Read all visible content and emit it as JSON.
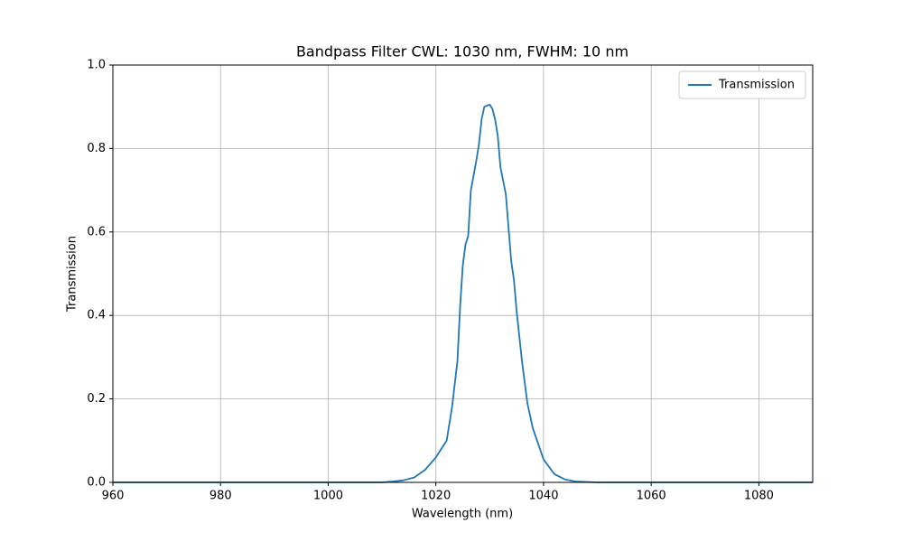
{
  "chart_data": {
    "type": "line",
    "title": "Bandpass Filter CWL: 1030 nm, FWHM: 10 nm",
    "x_label": "Wavelength (nm)",
    "y_label": "Transmission",
    "x": [
      960,
      980,
      1000,
      1010,
      1012,
      1014,
      1016,
      1018,
      1020,
      1022,
      1023,
      1024,
      1024.5,
      1025,
      1025.5,
      1026,
      1026.5,
      1027.5,
      1028,
      1028.5,
      1029,
      1030,
      1030.5,
      1031,
      1031.5,
      1032,
      1033,
      1033.5,
      1034,
      1034.5,
      1035,
      1036,
      1037,
      1038,
      1040,
      1042,
      1044,
      1046,
      1050,
      1070,
      1090
    ],
    "series": [
      {
        "name": "Transmission",
        "color": "#1f77b4",
        "values": [
          0,
          0,
          0,
          0,
          0.002,
          0.005,
          0.012,
          0.03,
          0.06,
          0.1,
          0.18,
          0.29,
          0.42,
          0.52,
          0.57,
          0.59,
          0.7,
          0.77,
          0.81,
          0.87,
          0.9,
          0.905,
          0.895,
          0.87,
          0.83,
          0.755,
          0.69,
          0.61,
          0.53,
          0.485,
          0.41,
          0.29,
          0.19,
          0.13,
          0.055,
          0.02,
          0.007,
          0.002,
          0,
          0,
          0
        ]
      }
    ],
    "xlim": [
      960,
      1090
    ],
    "ylim": [
      0,
      1
    ],
    "xticks": [
      960,
      980,
      1000,
      1020,
      1040,
      1060,
      1080
    ],
    "yticks": [
      {
        "value": 0,
        "label": "0.0"
      },
      {
        "value": 0.2,
        "label": "0.2"
      },
      {
        "value": 0.4,
        "label": "0.4"
      },
      {
        "value": 0.6,
        "label": "0.6"
      },
      {
        "value": 0.8,
        "label": "0.8"
      },
      {
        "value": 1,
        "label": "1.0"
      }
    ],
    "grid": true,
    "legend": "upper right"
  }
}
